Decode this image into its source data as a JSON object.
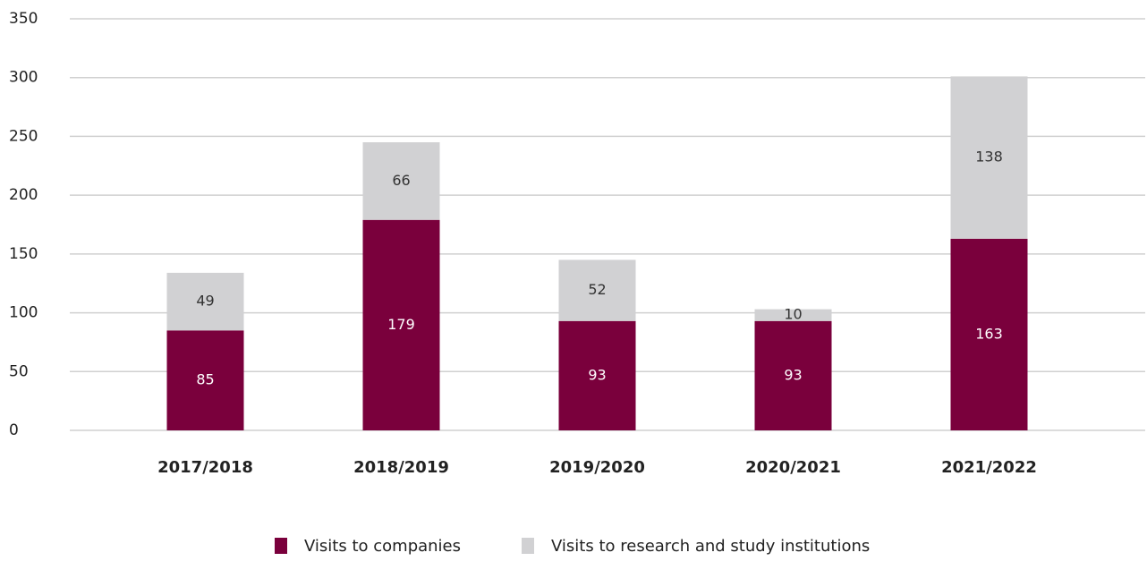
{
  "chart_data": {
    "type": "stacked_bar",
    "categories": [
      "2017/2018",
      "2018/2019",
      "2019/2020",
      "2020/2021",
      "2021/2022"
    ],
    "series": [
      {
        "name": "Visits to companies",
        "color": "#7a003c",
        "values": [
          85,
          179,
          93,
          93,
          163
        ]
      },
      {
        "name": "Visits to research and study institutions",
        "color": "#d1d1d3",
        "values": [
          49,
          66,
          52,
          10,
          138
        ]
      }
    ],
    "ylim": [
      0,
      350
    ],
    "yticks": [
      0,
      50,
      100,
      150,
      200,
      250,
      300,
      350
    ],
    "grid": true,
    "legend": "bottom"
  }
}
